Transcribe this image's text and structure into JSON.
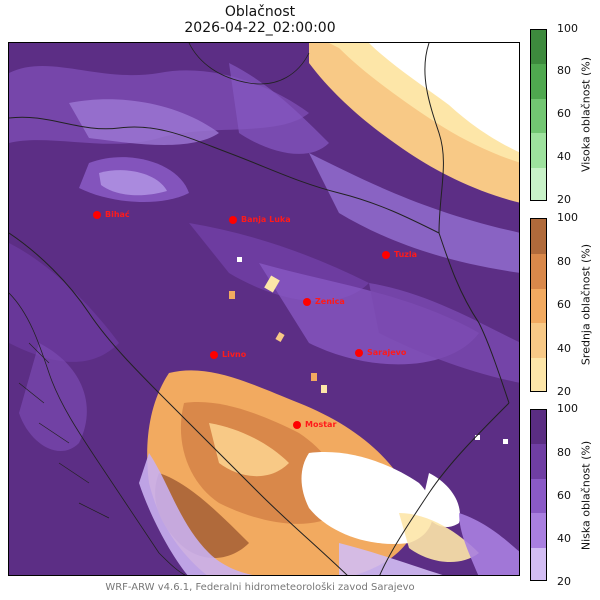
{
  "title": "Oblačnost",
  "subtitle": "2026-04-22_02:00:00",
  "footer": "WRF-ARW v4.6.1, Federalni hidrometeorološki zavod Sarajevo",
  "cities": [
    {
      "name": "Bihać"
    },
    {
      "name": "Banja Luka"
    },
    {
      "name": "Tuzla"
    },
    {
      "name": "Zenica"
    },
    {
      "name": "Livno"
    },
    {
      "name": "Sarajevo"
    },
    {
      "name": "Mostar"
    }
  ],
  "colorbars": [
    {
      "label": "Visoka oblačnost (%)",
      "ticks": [
        "100",
        "80",
        "60",
        "40",
        "20"
      ],
      "colors": [
        "#3d8a3d",
        "#4fa84f",
        "#72c672",
        "#9ee29e",
        "#c8f2c8"
      ]
    },
    {
      "label": "Srednja oblačnost (%)",
      "ticks": [
        "100",
        "80",
        "60",
        "40",
        "20"
      ],
      "colors": [
        "#b06a3b",
        "#d9884a",
        "#f2aa60",
        "#f8c986",
        "#fde6a8"
      ]
    },
    {
      "label": "Niska oblačnost (%)",
      "ticks": [
        "100",
        "80",
        "60",
        "40",
        "20"
      ],
      "colors": [
        "#5a2d82",
        "#6f3ea3",
        "#8a5ac6",
        "#a97fe0",
        "#d2bdf3"
      ]
    }
  ],
  "colors": {
    "city_marker": "#ff0000",
    "low_cloud_max": "#5a2d82"
  }
}
